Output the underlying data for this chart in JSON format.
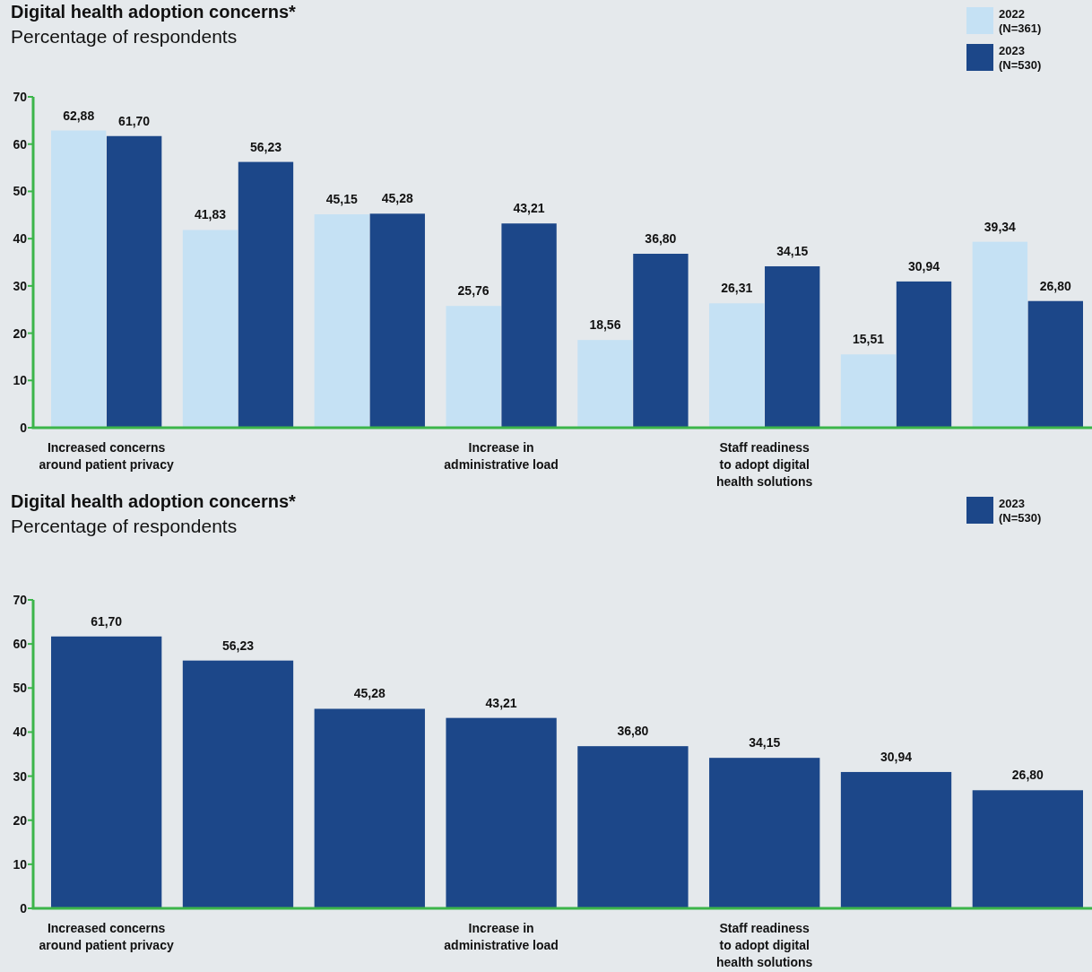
{
  "chart_data": [
    {
      "type": "bar",
      "title": "Digital health adoption concerns*",
      "subtitle": "Percentage of respondents",
      "categories": [
        "Increased concerns\naround patient privacy",
        null,
        null,
        "Increase in\nadministrative load",
        null,
        "Staff readiness\nto adopt digital\nhealth solutions",
        null,
        null
      ],
      "series": [
        {
          "name": "2022 (N=361)",
          "color": "#c5e1f4",
          "values": [
            62.88,
            41.83,
            45.15,
            25.76,
            18.56,
            26.31,
            15.51,
            39.34
          ],
          "value_labels": [
            "62,88",
            "41,83",
            "45,15",
            "25,76",
            "18,56",
            "26,31",
            "15,51",
            "39,34"
          ]
        },
        {
          "name": "2023 (N=530)",
          "color": "#1c4789",
          "values": [
            61.7,
            56.23,
            45.28,
            43.21,
            36.8,
            34.15,
            30.94,
            26.8
          ],
          "value_labels": [
            "61,70",
            "56,23",
            "45,28",
            "43,21",
            "36,80",
            "34,15",
            "30,94",
            "26,80"
          ]
        }
      ],
      "ylim": [
        0,
        70
      ],
      "yticks": [
        0,
        10,
        20,
        30,
        40,
        50,
        60,
        70
      ],
      "legend": "top right",
      "grid": false
    },
    {
      "type": "bar",
      "title": "Digital health adoption concerns*",
      "subtitle": "Percentage of respondents",
      "categories": [
        "Increased concerns\naround patient privacy",
        null,
        null,
        "Increase in\nadministrative load",
        null,
        "Staff readiness\nto adopt digital\nhealth solutions",
        null,
        null
      ],
      "series": [
        {
          "name": "2023 (N=530)",
          "color": "#1c4789",
          "values": [
            61.7,
            56.23,
            45.28,
            43.21,
            36.8,
            34.15,
            30.94,
            26.8
          ],
          "value_labels": [
            "61,70",
            "56,23",
            "45,28",
            "43,21",
            "36,80",
            "34,15",
            "30,94",
            "26,80"
          ]
        }
      ],
      "ylim": [
        0,
        70
      ],
      "yticks": [
        0,
        10,
        20,
        30,
        40,
        50,
        60,
        70
      ],
      "legend": "top right",
      "grid": false
    }
  ]
}
